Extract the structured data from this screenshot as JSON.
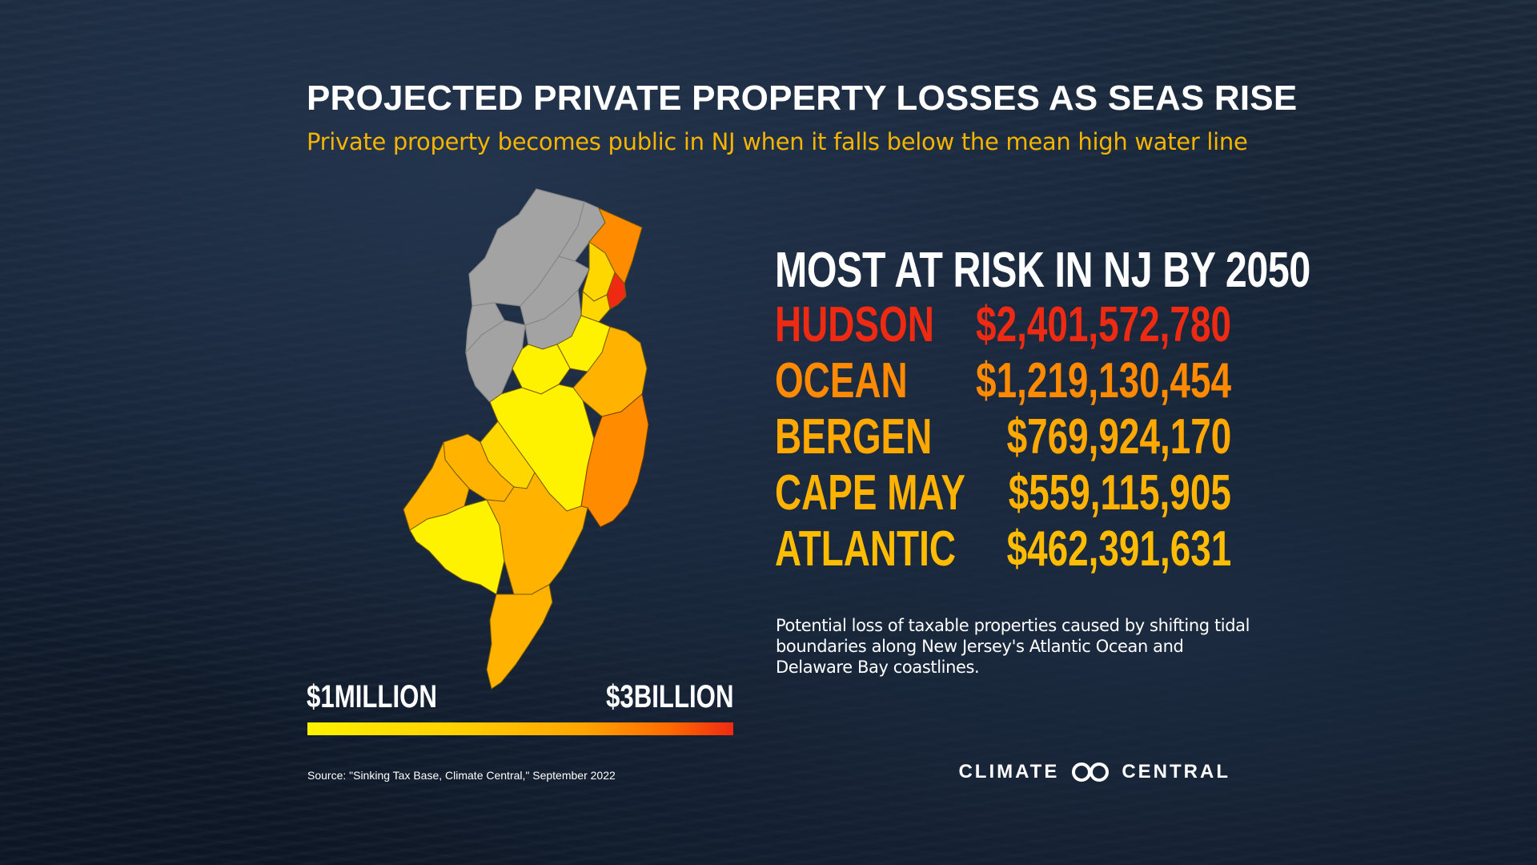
{
  "header": {
    "title": "PROJECTED PRIVATE PROPERTY LOSSES AS SEAS RISE",
    "subtitle": "Private property becomes public in NJ when it falls below the mean high water line"
  },
  "map": {
    "state": "New Jersey",
    "colors": {
      "gray": "#a3a3a3",
      "low": "#fff200",
      "low_mid": "#ffd700",
      "mid": "#ffb300",
      "high": "#ff8c00",
      "max": "#ee2a12"
    }
  },
  "legend": {
    "min_label": "$1MILLION",
    "max_label": "$3BILLION",
    "gradient": [
      "#fff200",
      "#ffd000",
      "#ffa400",
      "#ff6a00",
      "#ee2a12"
    ]
  },
  "risk": {
    "heading": "MOST AT RISK IN NJ BY 2050",
    "items": [
      {
        "name": "HUDSON",
        "value": "$2,401,572,780",
        "color": "#ee2a12"
      },
      {
        "name": "OCEAN",
        "value": "$1,219,130,454",
        "color": "#ff8a00"
      },
      {
        "name": "BERGEN",
        "value": "$769,924,170",
        "color": "#ffa800"
      },
      {
        "name": "CAPE MAY",
        "value": "$559,115,905",
        "color": "#ffb300"
      },
      {
        "name": "ATLANTIC",
        "value": "$462,391,631",
        "color": "#ffbc00"
      }
    ]
  },
  "description": "Potential loss of taxable properties caused by shifting tidal boundaries along New Jersey's Atlantic Ocean and Delaware Bay coastlines.",
  "source": "Source: \"Sinking Tax Base, Climate Central,\" September 2022",
  "logo": {
    "left": "CLIMATE",
    "right": "CENTRAL",
    "icon": "infinity-icon"
  }
}
